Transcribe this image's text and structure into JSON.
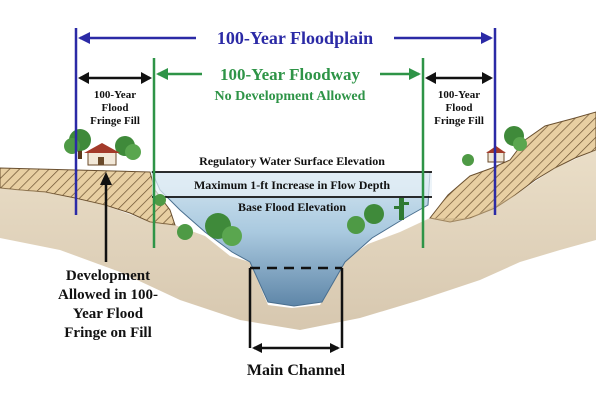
{
  "floodplain_label": "100-Year Floodplain",
  "floodway_label": "100-Year Floodway",
  "no_development_label": "No Development Allowed",
  "fringe_left": [
    "100-Year",
    "Flood",
    "Fringe Fill"
  ],
  "fringe_right": [
    "100-Year",
    "Flood",
    "Fringe Fill"
  ],
  "regulatory_wse_label": "Regulatory Water Surface Elevation",
  "max_increase_label": "Maximum 1-ft Increase in Flow Depth",
  "base_flood_label": "Base Flood Elevation",
  "development_allowed": [
    "Development",
    "Allowed in 100-",
    "Year Flood",
    "Fringe on Fill"
  ],
  "main_channel_label": "Main Channel",
  "colors": {
    "floodplain": "#2b2aa6",
    "floodway": "#2e9447",
    "water": "#a9c9df",
    "earth": "#e8cfa2",
    "hatch": "#6a5030",
    "text": "#111111"
  }
}
